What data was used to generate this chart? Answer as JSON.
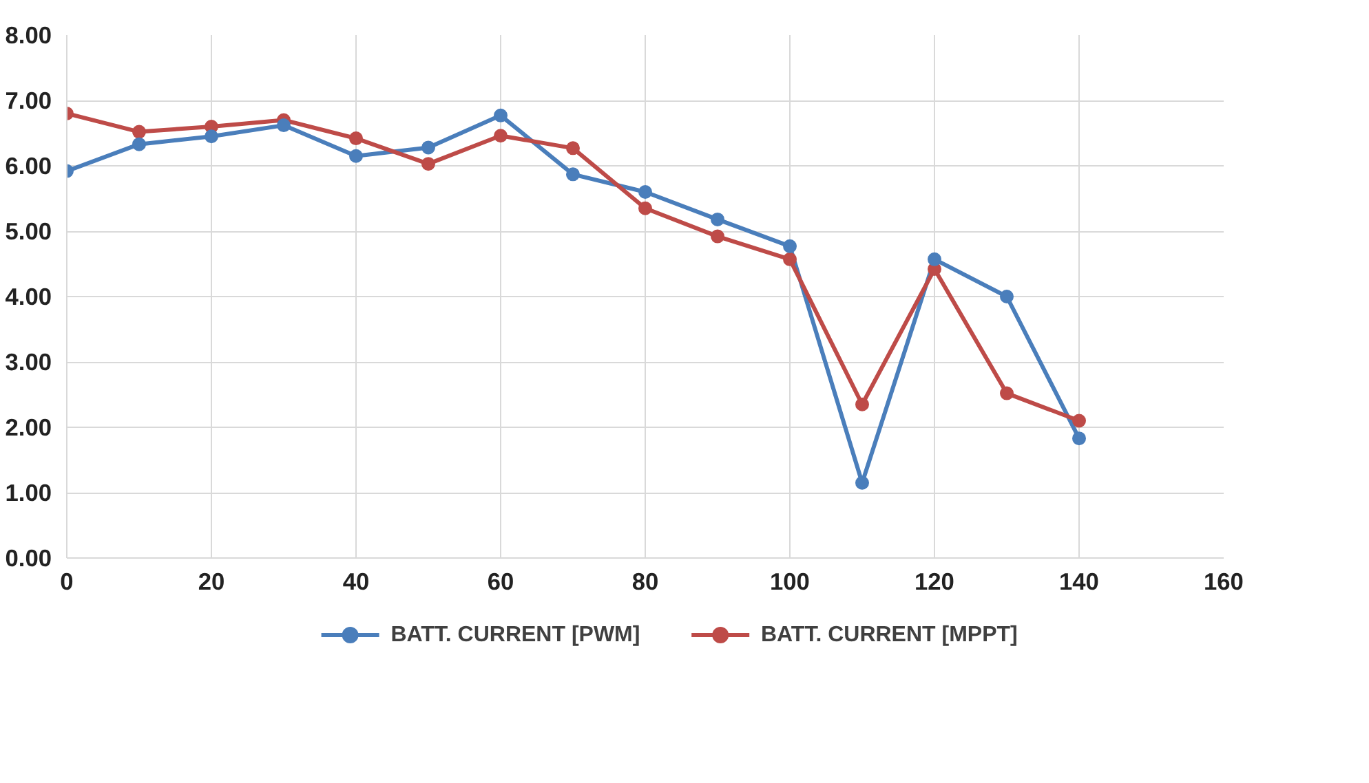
{
  "chart_data": {
    "type": "line",
    "x": [
      0,
      10,
      20,
      30,
      40,
      50,
      60,
      70,
      80,
      90,
      100,
      110,
      120,
      130,
      140
    ],
    "series": [
      {
        "name": "BATT. CURRENT [PWM]",
        "color": "#4a7ebb",
        "values": [
          5.92,
          6.33,
          6.45,
          6.62,
          6.15,
          6.28,
          6.77,
          5.87,
          5.6,
          5.18,
          4.77,
          1.15,
          4.57,
          4.0,
          1.83
        ]
      },
      {
        "name": "BATT. CURRENT [MPPT]",
        "color": "#be4b48",
        "values": [
          6.8,
          6.52,
          6.6,
          6.7,
          6.42,
          6.03,
          6.46,
          6.27,
          5.35,
          4.92,
          4.57,
          2.35,
          4.42,
          2.52,
          2.1
        ]
      }
    ],
    "xlim": [
      0,
      160
    ],
    "xticks": [
      0,
      20,
      40,
      60,
      80,
      100,
      120,
      140,
      160
    ],
    "ylim": [
      0,
      8
    ],
    "yticks": [
      {
        "value": 0,
        "label": "0.00"
      },
      {
        "value": 1,
        "label": "1.00"
      },
      {
        "value": 2,
        "label": "2.00"
      },
      {
        "value": 3,
        "label": "3.00"
      },
      {
        "value": 4,
        "label": "4.00"
      },
      {
        "value": 5,
        "label": "5.00"
      },
      {
        "value": 6,
        "label": "6.00"
      },
      {
        "value": 7,
        "label": "7.00"
      },
      {
        "value": 8,
        "label": "8.00"
      }
    ],
    "grid": true,
    "legend": "bottom",
    "marker": "circle",
    "line_style": "solid"
  }
}
